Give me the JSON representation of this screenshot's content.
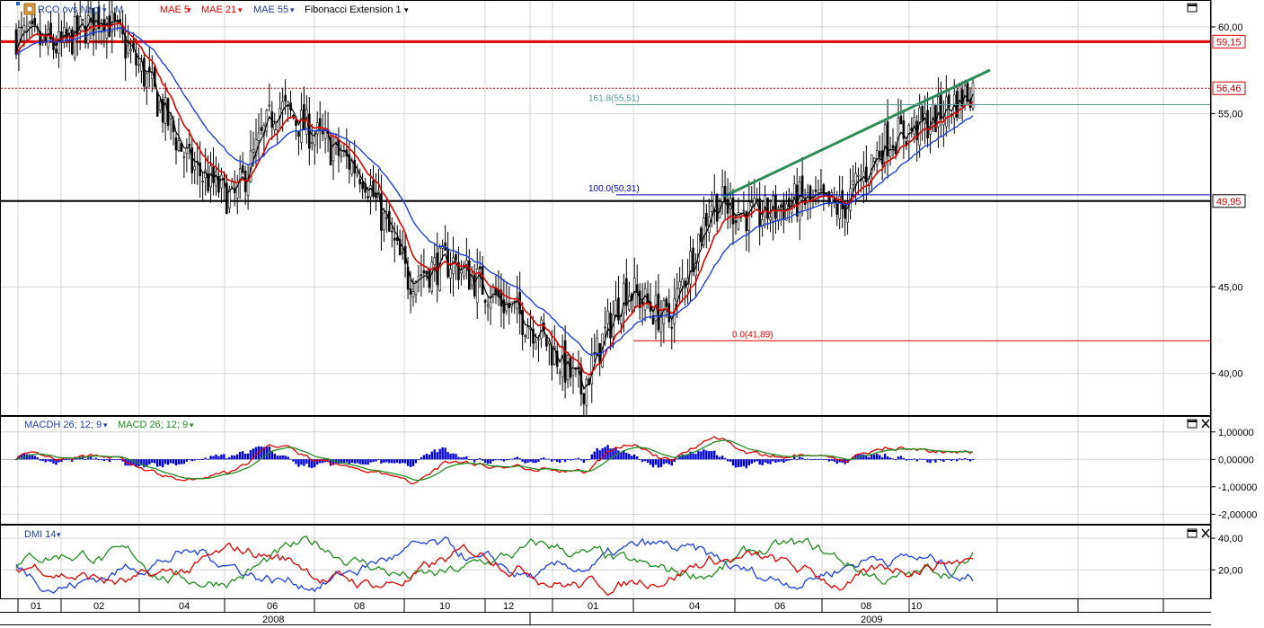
{
  "main_legend": {
    "series_label": "RCO övs Napi",
    "mae5_label": "MAE 5",
    "mae21_label": "MAE 21",
    "mae55_label": "MAE 55",
    "fib_label": "Fibonacci Extension 1"
  },
  "price_axis": {
    "ticks": [
      "60,00",
      "55,00",
      "45,00",
      "40,00"
    ],
    "tick_values": [
      60,
      55,
      45,
      40
    ],
    "range": [
      37.6,
      61.5
    ]
  },
  "price_markers": [
    {
      "label": "59,15",
      "value": 59.15,
      "color": "#e00000",
      "style": "solid"
    },
    {
      "label": "56,46",
      "value": 56.46,
      "color": "#d00000",
      "style": "dotted"
    },
    {
      "label": "49,95",
      "value": 49.95,
      "color": "#000000",
      "style": "solid"
    }
  ],
  "fibonacci": [
    {
      "label": "161.8(55,51)",
      "value": 55.51,
      "color": "#5a9a9a"
    },
    {
      "label": "100.0(50,31)",
      "value": 50.31,
      "color": "#0000c0"
    },
    {
      "label": "0.0(41,89)",
      "value": 41.89,
      "color": "#e00000"
    }
  ],
  "macd_panel": {
    "label_histogram": "MACDH 26; 12; 9",
    "label_macd": "MACD 26; 12; 9",
    "ticks": [
      "1,00000",
      "0,00000",
      "-1,00000",
      "-2,00000"
    ],
    "tick_values": [
      1,
      0,
      -1,
      -2
    ],
    "range": [
      -2.35,
      1.55
    ]
  },
  "dmi_panel": {
    "label": "DMI 14",
    "ticks": [
      "40,00",
      "20,00"
    ],
    "tick_values": [
      40,
      20
    ],
    "range": [
      2,
      48
    ]
  },
  "time_axis": {
    "months": [
      "01",
      "02",
      "04",
      "06",
      "08",
      "10",
      "12",
      "01",
      "04",
      "06",
      "08",
      "10"
    ],
    "years": [
      "2008",
      "2009"
    ]
  },
  "chart_data": {
    "type": "line",
    "title": "RCO övs Napi",
    "x": [
      "2008-01",
      "2008-02",
      "2008-03",
      "2008-04",
      "2008-05",
      "2008-06",
      "2008-07",
      "2008-08",
      "2008-09",
      "2008-10",
      "2008-11",
      "2008-12",
      "2009-01",
      "2009-02",
      "2009-03",
      "2009-04",
      "2009-05",
      "2009-06",
      "2009-07",
      "2009-08",
      "2009-09",
      "2009-10",
      "2009-11"
    ],
    "series": [
      {
        "name": "RCO övs Napi",
        "values": [
          59.5,
          58.8,
          60.8,
          57.0,
          52.0,
          50.0,
          55.5,
          53.5,
          51.5,
          45.5,
          46.5,
          44.5,
          42.5,
          39.0,
          45.0,
          43.0,
          50.0,
          49.0,
          50.0,
          49.5,
          53.5,
          54.5,
          56.5
        ]
      },
      {
        "name": "MAE 21",
        "values": [
          59.0,
          59.0,
          60.5,
          57.5,
          52.5,
          50.5,
          54.5,
          54.0,
          52.5,
          46.0,
          46.0,
          44.8,
          43.0,
          40.5,
          44.5,
          43.5,
          49.0,
          49.0,
          49.5,
          49.3,
          52.5,
          53.8,
          54.8
        ]
      },
      {
        "name": "MAE 55",
        "values": [
          60.0,
          60.2,
          60.5,
          58.5,
          54.0,
          51.5,
          53.5,
          54.0,
          53.0,
          48.5,
          46.8,
          45.5,
          44.3,
          42.3,
          43.2,
          43.2,
          46.5,
          48.0,
          48.8,
          49.0,
          51.0,
          52.5,
          53.3
        ]
      }
    ],
    "xlabel": "",
    "ylabel": "",
    "ylim": [
      37.6,
      61.5
    ],
    "grid": true
  }
}
